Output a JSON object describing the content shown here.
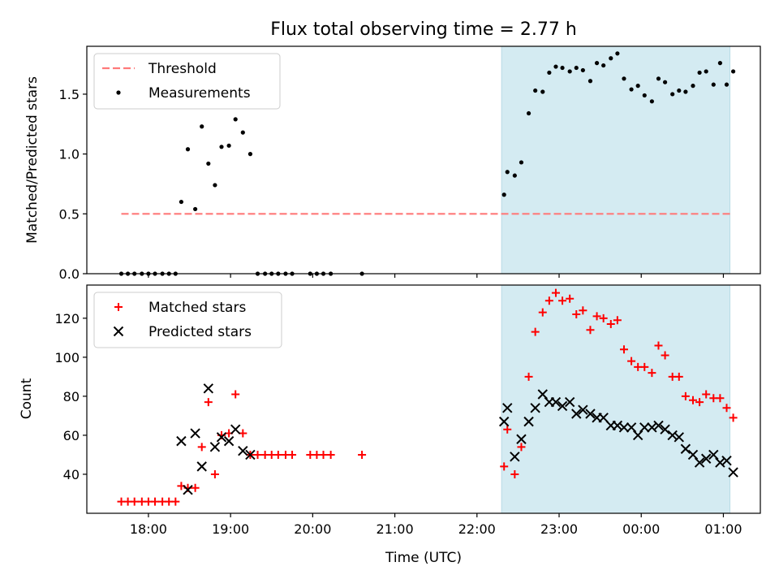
{
  "title": "Flux total observing time = 2.77 h",
  "shaded_region": {
    "start_hour": 22.3,
    "end_hour": 25.08,
    "color": "#d4ebf2"
  },
  "x_axis": {
    "label": "Time (UTC)",
    "xlim": [
      17.25,
      25.45
    ],
    "ticks": [
      {
        "v": 18,
        "label": "18:00"
      },
      {
        "v": 19,
        "label": "19:00"
      },
      {
        "v": 20,
        "label": "20:00"
      },
      {
        "v": 21,
        "label": "21:00"
      },
      {
        "v": 22,
        "label": "22:00"
      },
      {
        "v": 23,
        "label": "23:00"
      },
      {
        "v": 24,
        "label": "00:00"
      },
      {
        "v": 25,
        "label": "01:00"
      }
    ]
  },
  "chart_data": [
    {
      "type": "scatter",
      "panel": "top",
      "ylabel": "Matched/Predicted stars",
      "ylim": [
        0,
        1.9
      ],
      "yticks": [
        {
          "v": 0,
          "label": "0.0"
        },
        {
          "v": 0.5,
          "label": "0.5"
        },
        {
          "v": 1.0,
          "label": "1.0"
        },
        {
          "v": 1.5,
          "label": "1.5"
        }
      ],
      "legend": [
        "Threshold",
        "Measurements"
      ],
      "threshold": {
        "name": "Threshold",
        "value": 0.5,
        "x_range": [
          17.67,
          25.08
        ],
        "color": "#ff7a7a"
      },
      "series": [
        {
          "name": "Measurements",
          "color": "#000000",
          "points": [
            [
              17.67,
              0
            ],
            [
              17.75,
              0
            ],
            [
              17.83,
              0
            ],
            [
              17.92,
              0
            ],
            [
              18.0,
              0
            ],
            [
              18.08,
              0
            ],
            [
              18.17,
              0
            ],
            [
              18.25,
              0
            ],
            [
              18.33,
              0
            ],
            [
              18.4,
              0.6
            ],
            [
              18.48,
              1.04
            ],
            [
              18.57,
              0.54
            ],
            [
              18.65,
              1.23
            ],
            [
              18.73,
              0.92
            ],
            [
              18.81,
              0.74
            ],
            [
              18.89,
              1.06
            ],
            [
              18.98,
              1.07
            ],
            [
              19.06,
              1.29
            ],
            [
              19.15,
              1.18
            ],
            [
              19.24,
              1.0
            ],
            [
              19.33,
              0
            ],
            [
              19.42,
              0
            ],
            [
              19.5,
              0
            ],
            [
              19.58,
              0
            ],
            [
              19.67,
              0
            ],
            [
              19.75,
              0
            ],
            [
              19.97,
              0
            ],
            [
              20.05,
              0
            ],
            [
              20.13,
              0
            ],
            [
              20.22,
              0
            ],
            [
              20.6,
              0
            ],
            [
              22.33,
              0.66
            ],
            [
              22.37,
              0.85
            ],
            [
              22.46,
              0.82
            ],
            [
              22.54,
              0.93
            ],
            [
              22.63,
              1.34
            ],
            [
              22.71,
              1.53
            ],
            [
              22.8,
              1.52
            ],
            [
              22.88,
              1.68
            ],
            [
              22.96,
              1.73
            ],
            [
              23.04,
              1.72
            ],
            [
              23.13,
              1.69
            ],
            [
              23.21,
              1.72
            ],
            [
              23.29,
              1.7
            ],
            [
              23.38,
              1.61
            ],
            [
              23.46,
              1.76
            ],
            [
              23.54,
              1.74
            ],
            [
              23.63,
              1.8
            ],
            [
              23.71,
              1.84
            ],
            [
              23.79,
              1.63
            ],
            [
              23.88,
              1.54
            ],
            [
              23.96,
              1.57
            ],
            [
              24.04,
              1.49
            ],
            [
              24.13,
              1.44
            ],
            [
              24.21,
              1.63
            ],
            [
              24.29,
              1.6
            ],
            [
              24.38,
              1.5
            ],
            [
              24.46,
              1.53
            ],
            [
              24.54,
              1.52
            ],
            [
              24.63,
              1.57
            ],
            [
              24.71,
              1.68
            ],
            [
              24.79,
              1.69
            ],
            [
              24.88,
              1.58
            ],
            [
              24.96,
              1.76
            ],
            [
              25.04,
              1.58
            ],
            [
              25.12,
              1.69
            ]
          ]
        }
      ]
    },
    {
      "type": "scatter",
      "panel": "bottom",
      "ylabel": "Count",
      "ylim": [
        20,
        137
      ],
      "yticks": [
        {
          "v": 40,
          "label": "40"
        },
        {
          "v": 60,
          "label": "60"
        },
        {
          "v": 80,
          "label": "80"
        },
        {
          "v": 100,
          "label": "100"
        },
        {
          "v": 120,
          "label": "120"
        }
      ],
      "legend": [
        "Matched stars",
        "Predicted stars"
      ],
      "series": [
        {
          "name": "Matched stars",
          "marker": "+",
          "color": "#ff0000",
          "points": [
            [
              17.67,
              26
            ],
            [
              17.75,
              26
            ],
            [
              17.83,
              26
            ],
            [
              17.92,
              26
            ],
            [
              18.0,
              26
            ],
            [
              18.08,
              26
            ],
            [
              18.17,
              26
            ],
            [
              18.25,
              26
            ],
            [
              18.33,
              26
            ],
            [
              18.4,
              34
            ],
            [
              18.48,
              33
            ],
            [
              18.57,
              33
            ],
            [
              18.65,
              54
            ],
            [
              18.73,
              77
            ],
            [
              18.81,
              40
            ],
            [
              18.89,
              60
            ],
            [
              18.98,
              61
            ],
            [
              19.06,
              81
            ],
            [
              19.15,
              61
            ],
            [
              19.24,
              50
            ],
            [
              19.33,
              50
            ],
            [
              19.42,
              50
            ],
            [
              19.5,
              50
            ],
            [
              19.58,
              50
            ],
            [
              19.67,
              50
            ],
            [
              19.75,
              50
            ],
            [
              19.97,
              50
            ],
            [
              20.05,
              50
            ],
            [
              20.13,
              50
            ],
            [
              20.22,
              50
            ],
            [
              20.6,
              50
            ],
            [
              22.33,
              44
            ],
            [
              22.37,
              63
            ],
            [
              22.46,
              40
            ],
            [
              22.54,
              54
            ],
            [
              22.63,
              90
            ],
            [
              22.71,
              113
            ],
            [
              22.8,
              123
            ],
            [
              22.88,
              129
            ],
            [
              22.96,
              133
            ],
            [
              23.04,
              129
            ],
            [
              23.13,
              130
            ],
            [
              23.21,
              122
            ],
            [
              23.29,
              124
            ],
            [
              23.38,
              114
            ],
            [
              23.46,
              121
            ],
            [
              23.54,
              120
            ],
            [
              23.63,
              117
            ],
            [
              23.71,
              119
            ],
            [
              23.79,
              104
            ],
            [
              23.88,
              98
            ],
            [
              23.96,
              95
            ],
            [
              24.04,
              95
            ],
            [
              24.13,
              92
            ],
            [
              24.21,
              106
            ],
            [
              24.29,
              101
            ],
            [
              24.38,
              90
            ],
            [
              24.46,
              90
            ],
            [
              24.54,
              80
            ],
            [
              24.63,
              78
            ],
            [
              24.71,
              77
            ],
            [
              24.79,
              81
            ],
            [
              24.88,
              79
            ],
            [
              24.96,
              79
            ],
            [
              25.04,
              74
            ],
            [
              25.12,
              69
            ]
          ]
        },
        {
          "name": "Predicted stars",
          "marker": "x",
          "color": "#000000",
          "points": [
            [
              18.4,
              57
            ],
            [
              18.48,
              32
            ],
            [
              18.57,
              61
            ],
            [
              18.65,
              44
            ],
            [
              18.73,
              84
            ],
            [
              18.81,
              54
            ],
            [
              18.89,
              59
            ],
            [
              18.98,
              57
            ],
            [
              19.06,
              63
            ],
            [
              19.15,
              52
            ],
            [
              19.24,
              50
            ],
            [
              22.33,
              67
            ],
            [
              22.37,
              74
            ],
            [
              22.46,
              49
            ],
            [
              22.54,
              58
            ],
            [
              22.63,
              67
            ],
            [
              22.71,
              74
            ],
            [
              22.8,
              81
            ],
            [
              22.88,
              77
            ],
            [
              22.96,
              77
            ],
            [
              23.04,
              75
            ],
            [
              23.13,
              77
            ],
            [
              23.21,
              71
            ],
            [
              23.29,
              73
            ],
            [
              23.38,
              71
            ],
            [
              23.46,
              69
            ],
            [
              23.54,
              69
            ],
            [
              23.63,
              65
            ],
            [
              23.71,
              65
            ],
            [
              23.79,
              64
            ],
            [
              23.88,
              64
            ],
            [
              23.96,
              60
            ],
            [
              24.04,
              64
            ],
            [
              24.13,
              64
            ],
            [
              24.21,
              65
            ],
            [
              24.29,
              63
            ],
            [
              24.38,
              60
            ],
            [
              24.46,
              59
            ],
            [
              24.54,
              53
            ],
            [
              24.63,
              50
            ],
            [
              24.71,
              46
            ],
            [
              24.79,
              48
            ],
            [
              24.88,
              50
            ],
            [
              24.96,
              46
            ],
            [
              25.04,
              47
            ],
            [
              25.12,
              41
            ]
          ]
        }
      ]
    }
  ]
}
